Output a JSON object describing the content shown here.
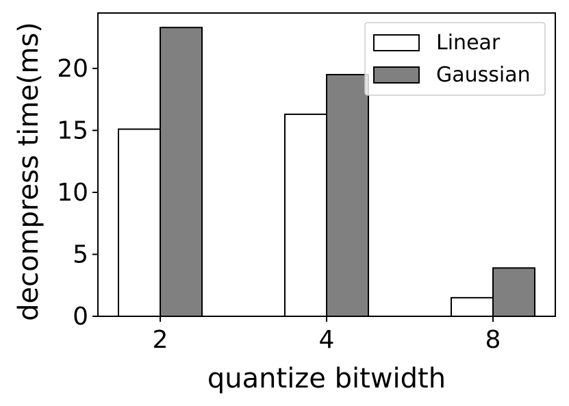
{
  "chart_data": {
    "type": "bar",
    "title": "",
    "xlabel": "quantize bitwidth",
    "ylabel": "decompress time(ms)",
    "categories": [
      "2",
      "4",
      "8"
    ],
    "series": [
      {
        "name": "Linear",
        "values": [
          15.1,
          16.3,
          1.5
        ],
        "color": "#ffffff"
      },
      {
        "name": "Gaussian",
        "values": [
          23.3,
          19.5,
          3.9
        ],
        "color": "#808080"
      }
    ],
    "ylim": [
      0,
      23.3
    ],
    "yticks": [
      0,
      5,
      10,
      15,
      20
    ],
    "grid": false,
    "legend": "top-right"
  }
}
